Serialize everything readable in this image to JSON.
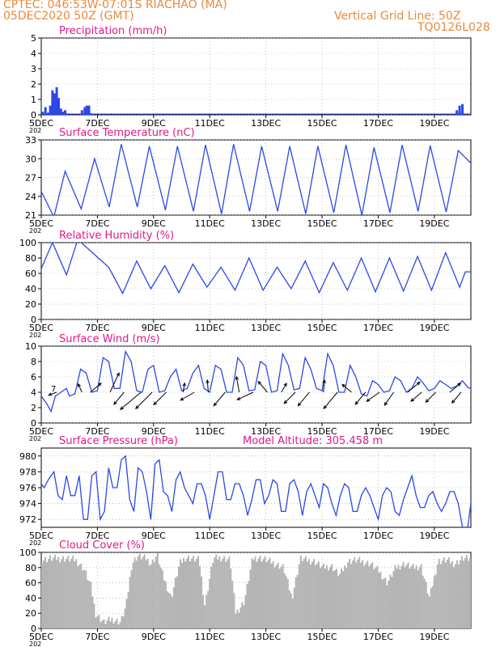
{
  "header": {
    "line1": "CPTEC:   046:53W-07:01S   RIACHAO (MA)",
    "line2": "05DEC2020 50Z (GMT)",
    "grid_note": "Vertical Grid Line: 50Z",
    "code": "TQ0126L028"
  },
  "colors": {
    "header": "#e8893c",
    "title": "#e0198a",
    "line": "#2b48e6",
    "cloud": "#b3b3b3",
    "grid": "#9a9a9a"
  },
  "x_ticks": [
    "5DEC",
    "7DEC",
    "9DEC",
    "11DEC",
    "13DEC",
    "15DEC",
    "17DEC",
    "19DEC"
  ],
  "x_tick_fragment": "202",
  "chart_data": [
    {
      "id": "precip",
      "type": "bar",
      "title": "Precipitation (mm/h)",
      "ylim": [
        0,
        5
      ],
      "yticks": [
        0,
        1,
        2,
        3,
        4,
        5
      ],
      "x_range_days": [
        0,
        15.3
      ],
      "x": [
        0.05,
        0.15,
        0.25,
        0.32,
        0.4,
        0.48,
        0.55,
        0.62,
        0.7,
        0.78,
        0.85,
        0.9,
        1.45,
        1.55,
        1.62,
        1.7,
        1.78,
        14.8,
        14.9,
        15.0
      ],
      "values": [
        0.2,
        0.5,
        0.15,
        0.6,
        1.6,
        1.4,
        1.8,
        1.1,
        0.4,
        0.2,
        0.3,
        0.1,
        0.3,
        0.5,
        0.6,
        0.6,
        0.1,
        0.3,
        0.6,
        0.7
      ]
    },
    {
      "id": "temp",
      "type": "line",
      "title": "Surface Temperature (nC)",
      "ylim": [
        21,
        33
      ],
      "yticks": [
        21,
        24,
        27,
        30,
        33
      ],
      "x_range_days": [
        0,
        15.3
      ],
      "minima_x": [
        0.45,
        1.42,
        2.42,
        3.42,
        4.42,
        5.42,
        6.42,
        7.42,
        8.42,
        9.42,
        10.42,
        11.42,
        12.42,
        13.42,
        14.42
      ],
      "minima_y": [
        20.7,
        22.0,
        22.3,
        22.3,
        21.8,
        21.6,
        21.2,
        21.6,
        21.6,
        21.2,
        21.4,
        21.0,
        21.4,
        21.6,
        21.5
      ],
      "maxima_x": [
        0.85,
        1.9,
        2.85,
        3.85,
        4.85,
        5.85,
        6.85,
        7.85,
        8.85,
        9.85,
        10.85,
        11.85,
        12.85,
        13.85,
        14.85
      ],
      "maxima_y": [
        28.0,
        30.0,
        32.3,
        32.0,
        32.0,
        32.2,
        32.3,
        32.0,
        32.0,
        32.0,
        32.2,
        31.8,
        32.2,
        32.1,
        31.3
      ],
      "start_y": 24.8,
      "end_y": 29.3
    },
    {
      "id": "rh",
      "type": "line",
      "title": "Relative Humidity (%)",
      "ylim": [
        0,
        100
      ],
      "yticks": [
        0,
        20,
        40,
        60,
        80,
        100
      ],
      "x_range_days": [
        0,
        15.3
      ],
      "maxima_x": [
        0.4,
        1.3,
        2.4,
        3.4,
        4.4,
        5.4,
        6.4,
        7.4,
        8.4,
        9.4,
        10.4,
        11.4,
        12.4,
        13.4,
        14.4,
        15.1
      ],
      "maxima_y": [
        100,
        104,
        68,
        76,
        70,
        72,
        68,
        80,
        68,
        76,
        74,
        80,
        80,
        82,
        87,
        62
      ],
      "minima_x": [
        0.02,
        0.9,
        2.9,
        3.9,
        4.9,
        5.9,
        6.9,
        7.9,
        8.9,
        9.9,
        10.9,
        11.9,
        12.9,
        13.9,
        14.9
      ],
      "minima_y": [
        68,
        58,
        34,
        40,
        35,
        42,
        38,
        38,
        40,
        35,
        38,
        36,
        37,
        38,
        42
      ],
      "start_y": 70,
      "end_y": 62
    },
    {
      "id": "wind",
      "type": "line",
      "title": "Surface Wind (m/s)",
      "ylim": [
        0,
        10
      ],
      "yticks": [
        0,
        2,
        4,
        6,
        8,
        10
      ],
      "x_range_days": [
        0,
        15.3
      ],
      "speed_x": [
        0,
        0.2,
        0.35,
        0.5,
        0.7,
        0.9,
        1.0,
        1.2,
        1.4,
        1.6,
        1.8,
        2.0,
        2.2,
        2.4,
        2.6,
        2.8,
        3.0,
        3.2,
        3.4,
        3.6,
        3.8,
        4.0,
        4.2,
        4.4,
        4.6,
        4.8,
        5.0,
        5.2,
        5.4,
        5.6,
        5.8,
        6.0,
        6.2,
        6.4,
        6.6,
        6.8,
        7.0,
        7.2,
        7.4,
        7.6,
        7.8,
        8.0,
        8.2,
        8.4,
        8.6,
        8.8,
        9.0,
        9.2,
        9.4,
        9.6,
        9.8,
        10.0,
        10.2,
        10.4,
        10.6,
        10.8,
        11.0,
        11.2,
        11.4,
        11.6,
        11.8,
        12.0,
        12.2,
        12.4,
        12.6,
        12.8,
        13.0,
        13.2,
        13.4,
        13.6,
        13.8,
        14.0,
        14.2,
        14.4,
        14.6,
        14.8,
        15.0,
        15.2,
        15.3
      ],
      "speed_y": [
        3.5,
        2.5,
        1.5,
        3.5,
        4.0,
        4.5,
        3.5,
        3.8,
        7.0,
        6.5,
        4.0,
        4.2,
        8.5,
        8.0,
        4.5,
        4.5,
        9.3,
        8.0,
        4.2,
        4.0,
        7.0,
        7.5,
        4.0,
        4.2,
        6.0,
        7.0,
        4.2,
        4.5,
        6.5,
        7.5,
        4.5,
        4.0,
        7.5,
        7.0,
        4.0,
        4.0,
        8.5,
        7.5,
        4.2,
        4.3,
        8.0,
        7.5,
        4.0,
        4.2,
        9.0,
        7.5,
        4.3,
        4.5,
        8.5,
        7.0,
        4.5,
        4.2,
        9.0,
        7.5,
        4.0,
        4.0,
        7.5,
        6.0,
        3.8,
        3.5,
        5.5,
        5.0,
        4.0,
        4.2,
        6.0,
        5.5,
        4.0,
        4.5,
        6.0,
        5.2,
        4.2,
        4.5,
        5.5,
        5.0,
        4.5,
        4.8,
        5.5,
        4.6,
        4.5
      ],
      "arrow_x": [
        0.55,
        1.45,
        1.75,
        2.45,
        2.95,
        3.55,
        3.95,
        4.45,
        5.05,
        5.45,
        5.95,
        6.55,
        7.05,
        7.55,
        8.05,
        8.55,
        9.05,
        9.55,
        10.05,
        10.55,
        11.05,
        11.55,
        12.05,
        12.55,
        13.05,
        13.55,
        14.05,
        14.55,
        14.95
      ],
      "arrow_dir_deg": [
        200,
        115,
        40,
        65,
        230,
        220,
        225,
        225,
        80,
        210,
        95,
        230,
        100,
        205,
        130,
        60,
        225,
        230,
        85,
        230,
        140,
        230,
        215,
        235,
        40,
        220,
        225,
        40,
        230
      ],
      "arrow_speed": [
        1.0,
        1.2,
        2.5,
        4.5,
        3.0,
        6.0,
        5.0,
        3.5,
        1.2,
        3.0,
        2.0,
        3.5,
        3.0,
        3.5,
        2.5,
        1.5,
        3.0,
        3.5,
        2.0,
        4.5,
        2.0,
        3.0,
        3.0,
        3.0,
        3.0,
        2.5,
        2.5,
        2.5,
        2.5
      ]
    },
    {
      "id": "press",
      "type": "line",
      "title": "Surface Pressure (hPa)",
      "extra_label": "Model Altitude: 305.458 m",
      "ylim": [
        971,
        981
      ],
      "yticks": [
        972,
        974,
        976,
        978,
        980
      ],
      "x_range_days": [
        0,
        15.3
      ],
      "x": [
        0,
        0.1,
        0.25,
        0.45,
        0.6,
        0.75,
        0.9,
        1.05,
        1.2,
        1.35,
        1.5,
        1.65,
        1.8,
        1.95,
        2.1,
        2.25,
        2.4,
        2.55,
        2.7,
        2.85,
        3.0,
        3.15,
        3.3,
        3.45,
        3.6,
        3.75,
        3.9,
        4.05,
        4.2,
        4.35,
        4.5,
        4.65,
        4.8,
        4.95,
        5.1,
        5.25,
        5.4,
        5.55,
        5.7,
        5.85,
        6.0,
        6.15,
        6.3,
        6.45,
        6.6,
        6.75,
        6.9,
        7.05,
        7.2,
        7.35,
        7.5,
        7.65,
        7.8,
        7.95,
        8.1,
        8.25,
        8.4,
        8.55,
        8.7,
        8.85,
        9.0,
        9.15,
        9.3,
        9.45,
        9.6,
        9.75,
        9.9,
        10.05,
        10.2,
        10.35,
        10.5,
        10.65,
        10.8,
        10.95,
        11.1,
        11.25,
        11.4,
        11.55,
        11.7,
        11.85,
        12.0,
        12.15,
        12.3,
        12.45,
        12.6,
        12.75,
        12.9,
        13.05,
        13.2,
        13.35,
        13.5,
        13.65,
        13.8,
        13.95,
        14.1,
        14.25,
        14.4,
        14.55,
        14.7,
        14.85,
        15.0,
        15.15,
        15.3
      ],
      "values": [
        976.5,
        976,
        977,
        978,
        975,
        974.5,
        977.5,
        975,
        975,
        977.5,
        972,
        972,
        977.5,
        978,
        972,
        973,
        978.5,
        976,
        976,
        979.5,
        980,
        974.5,
        973,
        978.5,
        978,
        975.5,
        972,
        979,
        979.5,
        975.5,
        975,
        973,
        977,
        978,
        976,
        975,
        974,
        976.5,
        976.5,
        975,
        972,
        975,
        978,
        978,
        974.5,
        974.5,
        976.5,
        976.5,
        975,
        972.5,
        974.5,
        977,
        977,
        974,
        975,
        977,
        976.5,
        973,
        973,
        976.5,
        977,
        975.5,
        972.5,
        975.5,
        976.5,
        975,
        973.5,
        976.5,
        976,
        974,
        972.5,
        975,
        976.5,
        976,
        973,
        973,
        975,
        976,
        975,
        973.5,
        972,
        975,
        976,
        975.5,
        973,
        972.5,
        974.5,
        976,
        977.5,
        975,
        973.5,
        973.5,
        975,
        975.5,
        974,
        973,
        974,
        975.5,
        975.5,
        974,
        971,
        970,
        974
      ]
    },
    {
      "id": "cloud",
      "type": "bar",
      "title": "Cloud Cover (%)",
      "ylim": [
        0,
        100
      ],
      "yticks": [
        0,
        20,
        40,
        60,
        80,
        100
      ],
      "x_range_days": [
        0,
        15.3
      ],
      "profile_x": [
        0,
        0.3,
        0.8,
        1.2,
        1.5,
        1.75,
        1.9,
        2.2,
        2.5,
        2.8,
        3.0,
        3.2,
        3.4,
        3.7,
        3.9,
        4.1,
        4.3,
        4.6,
        4.9,
        5.1,
        5.3,
        5.6,
        5.8,
        6.1,
        6.4,
        6.7,
        6.9,
        7.2,
        7.5,
        7.7,
        8.0,
        8.3,
        8.6,
        8.9,
        9.2,
        9.4,
        9.7,
        10.0,
        10.3,
        10.6,
        10.9,
        11.2,
        11.4,
        11.7,
        12.0,
        12.3,
        12.6,
        12.9,
        13.2,
        13.5,
        13.8,
        14.1,
        14.4,
        14.7,
        15.0,
        15.3
      ],
      "profile_y": [
        90,
        92,
        92,
        90,
        78,
        55,
        20,
        8,
        12,
        8,
        30,
        85,
        95,
        92,
        85,
        97,
        70,
        40,
        85,
        93,
        92,
        90,
        30,
        92,
        93,
        90,
        20,
        35,
        92,
        93,
        90,
        85,
        80,
        40,
        92,
        90,
        88,
        80,
        82,
        70,
        88,
        90,
        88,
        85,
        75,
        60,
        80,
        85,
        80,
        82,
        40,
        88,
        90,
        85,
        92,
        90
      ]
    }
  ]
}
